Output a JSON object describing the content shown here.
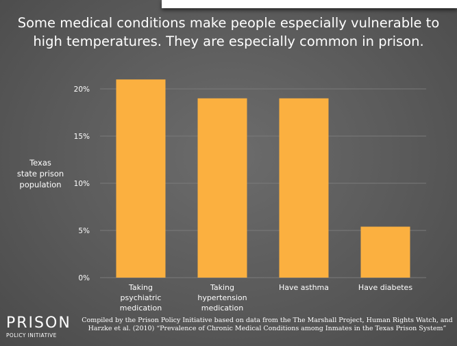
{
  "title": {
    "line1": "Some medical conditions make people especially vulnerable to",
    "line2": "high temperatures. They are especially common in prison."
  },
  "colors": {
    "bar": "#fbb040",
    "background": "#5e5e5e",
    "text": "#ffffff",
    "grid": "#7a7a7a"
  },
  "chart_data": {
    "type": "bar",
    "title": "Some medical conditions make people especially vulnerable to high temperatures. They are especially common in prison.",
    "ylabel": [
      "Texas",
      "state prison",
      "population"
    ],
    "xlabel": "",
    "categories": [
      [
        "Taking",
        "psychiatric",
        "medication"
      ],
      [
        "Taking",
        "hypertension",
        "medication"
      ],
      [
        "Have asthma"
      ],
      [
        "Have diabetes"
      ]
    ],
    "values": [
      21,
      19,
      19,
      5.4
    ],
    "ylim": [
      0,
      20
    ],
    "yticks": [
      {
        "value": 0,
        "label": "0%"
      },
      {
        "value": 5,
        "label": "5%"
      },
      {
        "value": 10,
        "label": "10%"
      },
      {
        "value": 15,
        "label": "15%"
      },
      {
        "value": 20,
        "label": "20%"
      }
    ],
    "grid": true,
    "legend": "none"
  },
  "logo": {
    "word": "PRISON",
    "sub": "POLICY INITIATIVE"
  },
  "source": {
    "line1": "Compiled by the Prison Policy Initiative based on data from the The Marshall Project, Human Rights Watch, and",
    "line2": "Harzke et al. (2010) “Prevalence of Chronic Medical Conditions among Inmates in the Texas Prison System”"
  }
}
